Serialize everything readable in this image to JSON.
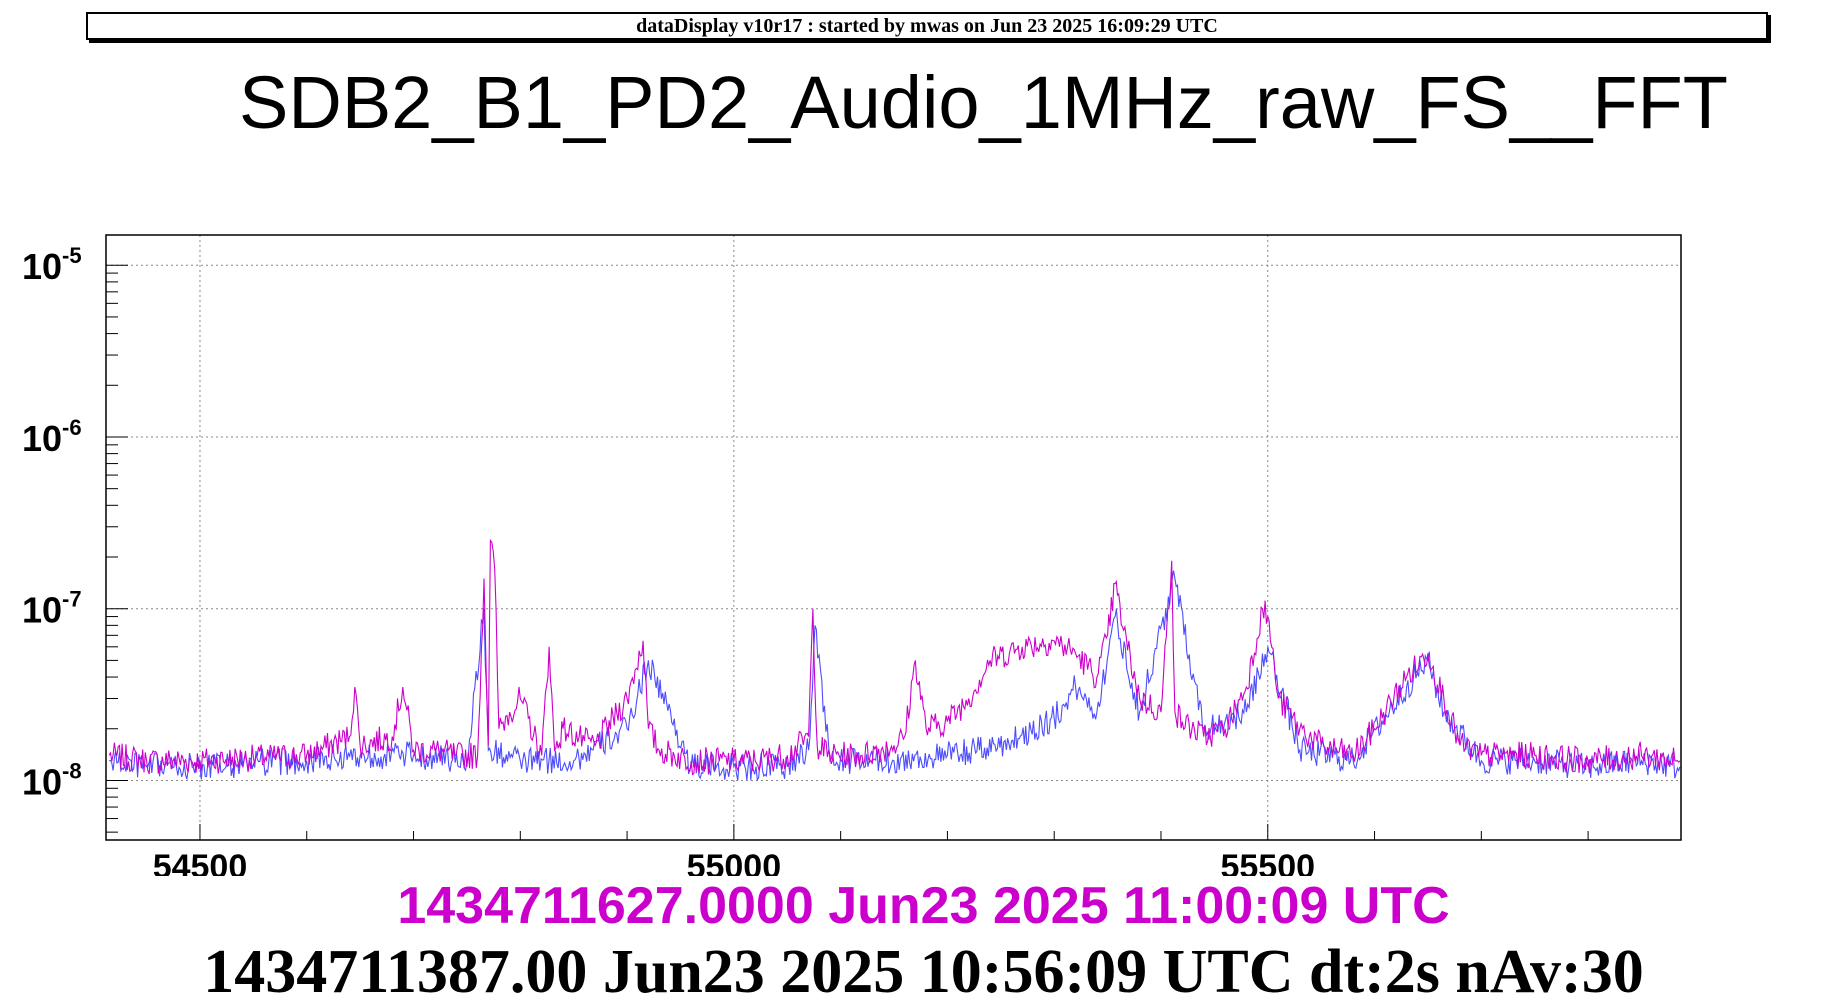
{
  "banner": {
    "text": "dataDisplay v10r17 : started by mwas on Jun 23 2025 16:09:29 UTC"
  },
  "footer": {
    "timestamp_pink": "1434711627.0000 Jun23 2025 11:00:09 UTC",
    "timestamp_black": "1434711387.00 Jun23 2025 10:56:09 UTC dt:2s nAv:30"
  },
  "chart_data": {
    "type": "line",
    "title": "SDB2_B1_PD2_Audio_1MHz_raw_FS__FFT",
    "xlabel": "",
    "ylabel": "",
    "xlim": [
      54412,
      55887
    ],
    "ylim": [
      4.5e-09,
      1.5e-05
    ],
    "yscale": "log",
    "grid": true,
    "x_ticks": [
      54500,
      55000,
      55500
    ],
    "x_tick_labels": [
      "54500",
      "55000",
      "55500"
    ],
    "y_ticks": [
      1e-08,
      1e-07,
      1e-06,
      1e-05
    ],
    "y_tick_labels": [
      {
        "base": "10",
        "exp": "-8"
      },
      {
        "base": "10",
        "exp": "-7"
      },
      {
        "base": "10",
        "exp": "-6"
      },
      {
        "base": "10",
        "exp": "-5"
      }
    ],
    "colors": {
      "series_1": "#cc00cc",
      "series_2": "#4d4dff"
    },
    "series": [
      {
        "color": "#cc00cc",
        "x": [
          54415,
          54450,
          54500,
          54550,
          54600,
          54640,
          54645,
          54650,
          54680,
          54690,
          54700,
          54720,
          54740,
          54760,
          54766,
          54770,
          54772,
          54776,
          54780,
          54790,
          54800,
          54820,
          54827,
          54832,
          54840,
          54860,
          54870,
          54900,
          54915,
          54920,
          54930,
          54960,
          54980,
          55000,
          55020,
          55050,
          55070,
          55074,
          55078,
          55090,
          55120,
          55150,
          55160,
          55170,
          55180,
          55200,
          55220,
          55240,
          55270,
          55300,
          55320,
          55340,
          55350,
          55357,
          55365,
          55380,
          55400,
          55410,
          55413,
          55420,
          55440,
          55460,
          55480,
          55495,
          55500,
          55510,
          55530,
          55550,
          55580,
          55600,
          55630,
          55650,
          55665,
          55680,
          55700,
          55750,
          55800,
          55850,
          55886
        ],
        "y": [
          1.4e-08,
          1.3e-08,
          1.3e-08,
          1.35e-08,
          1.4e-08,
          1.8e-08,
          3.5e-08,
          1.6e-08,
          1.8e-08,
          3.5e-08,
          1.5e-08,
          1.5e-08,
          1.4e-08,
          1.4e-08,
          1.5e-07,
          1.6e-08,
          2.5e-07,
          1.7e-07,
          2e-08,
          2.5e-08,
          3e-08,
          1.4e-08,
          6e-08,
          1.5e-08,
          2e-08,
          1.7e-08,
          1.6e-08,
          3e-08,
          6.5e-08,
          2e-08,
          1.5e-08,
          1.3e-08,
          1.3e-08,
          1.3e-08,
          1.3e-08,
          1.4e-08,
          1.8e-08,
          1e-07,
          1.6e-08,
          1.4e-08,
          1.4e-08,
          1.6e-08,
          1.8e-08,
          5e-08,
          2e-08,
          2.2e-08,
          3e-08,
          5e-08,
          6e-08,
          6.5e-08,
          5.5e-08,
          4e-08,
          7e-08,
          1.4e-07,
          7.5e-08,
          3e-08,
          2.5e-08,
          1.9e-07,
          2.5e-08,
          2.2e-08,
          1.8e-08,
          2e-08,
          3.5e-08,
          1e-07,
          9e-08,
          3e-08,
          2e-08,
          1.6e-08,
          1.4e-08,
          2e-08,
          4e-08,
          5.5e-08,
          3e-08,
          1.6e-08,
          1.4e-08,
          1.4e-08,
          1.3e-08,
          1.4e-08,
          1.3e-08
        ]
      },
      {
        "color": "#4d4dff",
        "x": [
          54415,
          54450,
          54500,
          54550,
          54600,
          54650,
          54700,
          54750,
          54766,
          54770,
          54800,
          54850,
          54900,
          54920,
          54960,
          55000,
          55050,
          55070,
          55076,
          55090,
          55150,
          55200,
          55230,
          55260,
          55300,
          55320,
          55340,
          55357,
          55380,
          55413,
          55440,
          55480,
          55500,
          55530,
          55580,
          55630,
          55650,
          55665,
          55700,
          55750,
          55800,
          55850,
          55886
        ],
        "y": [
          1.3e-08,
          1.2e-08,
          1.2e-08,
          1.25e-08,
          1.3e-08,
          1.4e-08,
          1.4e-08,
          1.3e-08,
          1e-07,
          1.5e-08,
          1.3e-08,
          1.3e-08,
          2e-08,
          5e-08,
          1.2e-08,
          1.2e-08,
          1.2e-08,
          1.5e-08,
          8e-08,
          1.3e-08,
          1.3e-08,
          1.4e-08,
          1.5e-08,
          1.7e-08,
          2.3e-08,
          3.5e-08,
          2.5e-08,
          9e-08,
          2.5e-08,
          1.5e-07,
          2e-08,
          2.5e-08,
          6e-08,
          1.5e-08,
          1.3e-08,
          3.5e-08,
          5e-08,
          2.5e-08,
          1.3e-08,
          1.3e-08,
          1.2e-08,
          1.3e-08,
          1.2e-08
        ]
      }
    ]
  }
}
